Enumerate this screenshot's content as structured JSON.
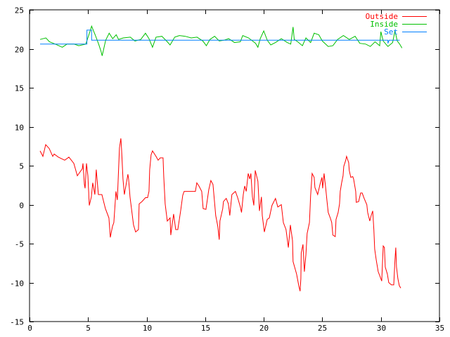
{
  "chart_data": {
    "type": "line",
    "title": "",
    "xlabel": "",
    "ylabel": "",
    "xlim": [
      0,
      35
    ],
    "ylim": [
      -15,
      25
    ],
    "xticks": [
      0,
      5,
      10,
      15,
      20,
      25,
      30,
      35
    ],
    "yticks": [
      -15,
      -10,
      -5,
      0,
      5,
      10,
      15,
      20,
      25
    ],
    "grid": false,
    "legend_position": "top-right",
    "series": [
      {
        "name": "Outside",
        "color": "#ff0000",
        "points": [
          [
            0.9,
            6.9
          ],
          [
            1.14,
            6.2
          ],
          [
            1.38,
            7.7
          ],
          [
            1.68,
            7.2
          ],
          [
            1.98,
            6.2
          ],
          [
            2.1,
            6.5
          ],
          [
            2.46,
            6.1
          ],
          [
            3.0,
            5.7
          ],
          [
            3.36,
            6.1
          ],
          [
            3.78,
            5.3
          ],
          [
            4.08,
            3.7
          ],
          [
            4.5,
            4.6
          ],
          [
            4.56,
            5.3
          ],
          [
            4.68,
            2.6
          ],
          [
            4.74,
            2.1
          ],
          [
            4.86,
            5.3
          ],
          [
            4.98,
            3.7
          ],
          [
            5.1,
            -0.1
          ],
          [
            5.28,
            1.0
          ],
          [
            5.4,
            2.8
          ],
          [
            5.58,
            1.3
          ],
          [
            5.7,
            4.5
          ],
          [
            5.88,
            1.3
          ],
          [
            6.18,
            1.3
          ],
          [
            6.48,
            -0.5
          ],
          [
            6.78,
            -1.7
          ],
          [
            6.9,
            -4.2
          ],
          [
            7.08,
            -2.8
          ],
          [
            7.2,
            -2.3
          ],
          [
            7.38,
            1.7
          ],
          [
            7.5,
            0.6
          ],
          [
            7.68,
            7.3
          ],
          [
            7.8,
            8.5
          ],
          [
            7.86,
            7.1
          ],
          [
            7.98,
            3.3
          ],
          [
            8.1,
            1.3
          ],
          [
            8.4,
            3.9
          ],
          [
            8.46,
            3.3
          ],
          [
            8.58,
            1.0
          ],
          [
            8.88,
            -2.6
          ],
          [
            9.06,
            -3.5
          ],
          [
            9.3,
            -3.2
          ],
          [
            9.36,
            0.1
          ],
          [
            9.6,
            0.4
          ],
          [
            9.9,
            0.9
          ],
          [
            10.08,
            0.9
          ],
          [
            10.2,
            1.7
          ],
          [
            10.26,
            4.5
          ],
          [
            10.38,
            6.4
          ],
          [
            10.5,
            6.9
          ],
          [
            10.8,
            6.2
          ],
          [
            10.98,
            5.7
          ],
          [
            11.16,
            6.0
          ],
          [
            11.4,
            6.0
          ],
          [
            11.46,
            3.6
          ],
          [
            11.58,
            0.1
          ],
          [
            11.76,
            -2.1
          ],
          [
            12.0,
            -1.7
          ],
          [
            12.06,
            -3.9
          ],
          [
            12.3,
            -1.2
          ],
          [
            12.48,
            -3.2
          ],
          [
            12.66,
            -3.2
          ],
          [
            12.9,
            -0.8
          ],
          [
            13.08,
            1.2
          ],
          [
            13.2,
            1.7
          ],
          [
            14.16,
            1.7
          ],
          [
            14.28,
            2.8
          ],
          [
            14.46,
            2.4
          ],
          [
            14.7,
            1.7
          ],
          [
            14.82,
            -0.5
          ],
          [
            15.06,
            -0.6
          ],
          [
            15.3,
            1.9
          ],
          [
            15.48,
            3.1
          ],
          [
            15.66,
            2.6
          ],
          [
            15.9,
            -1.4
          ],
          [
            16.08,
            -2.8
          ],
          [
            16.2,
            -4.5
          ],
          [
            16.26,
            -2.1
          ],
          [
            16.5,
            -0.5
          ],
          [
            16.56,
            0.4
          ],
          [
            16.8,
            0.8
          ],
          [
            16.98,
            0.1
          ],
          [
            17.1,
            -1.4
          ],
          [
            17.28,
            1.3
          ],
          [
            17.58,
            1.7
          ],
          [
            17.77,
            0.9
          ],
          [
            18.0,
            -0.3
          ],
          [
            18.1,
            -1.0
          ],
          [
            18.25,
            1.3
          ],
          [
            18.37,
            2.4
          ],
          [
            18.5,
            1.7
          ],
          [
            18.67,
            4.0
          ],
          [
            18.8,
            3.3
          ],
          [
            18.9,
            4.0
          ],
          [
            19.03,
            1.0
          ],
          [
            19.15,
            -0.1
          ],
          [
            19.27,
            4.4
          ],
          [
            19.5,
            3.0
          ],
          [
            19.63,
            -0.8
          ],
          [
            19.8,
            1.0
          ],
          [
            19.87,
            -1.4
          ],
          [
            20.05,
            -3.5
          ],
          [
            20.29,
            -1.9
          ],
          [
            20.47,
            -1.7
          ],
          [
            20.7,
            -0.1
          ],
          [
            21.0,
            0.8
          ],
          [
            21.2,
            -0.3
          ],
          [
            21.5,
            0.0
          ],
          [
            21.67,
            -2.3
          ],
          [
            21.9,
            -3.2
          ],
          [
            22.1,
            -5.5
          ],
          [
            22.27,
            -2.6
          ],
          [
            22.45,
            -4.6
          ],
          [
            22.5,
            -7.3
          ],
          [
            22.8,
            -8.9
          ],
          [
            22.99,
            -10.4
          ],
          [
            23.1,
            -11.1
          ],
          [
            23.17,
            -9.5
          ],
          [
            23.2,
            -6.2
          ],
          [
            23.35,
            -5.1
          ],
          [
            23.47,
            -8.6
          ],
          [
            23.6,
            -6.4
          ],
          [
            23.7,
            -3.7
          ],
          [
            23.9,
            -2.3
          ],
          [
            24.0,
            1.2
          ],
          [
            24.13,
            4.0
          ],
          [
            24.3,
            3.5
          ],
          [
            24.37,
            2.2
          ],
          [
            24.6,
            1.3
          ],
          [
            24.8,
            2.6
          ],
          [
            24.97,
            3.5
          ],
          [
            25.03,
            2.1
          ],
          [
            25.15,
            4.0
          ],
          [
            25.27,
            2.4
          ],
          [
            25.39,
            0.6
          ],
          [
            25.5,
            -1.0
          ],
          [
            25.7,
            -1.8
          ],
          [
            25.8,
            -2.3
          ],
          [
            25.9,
            -3.9
          ],
          [
            26.1,
            -4.1
          ],
          [
            26.17,
            -1.9
          ],
          [
            26.35,
            -1.0
          ],
          [
            26.47,
            0.1
          ],
          [
            26.53,
            1.7
          ],
          [
            26.65,
            2.8
          ],
          [
            26.77,
            3.7
          ],
          [
            26.83,
            4.9
          ],
          [
            27.0,
            5.7
          ],
          [
            27.07,
            6.2
          ],
          [
            27.25,
            5.4
          ],
          [
            27.3,
            4.4
          ],
          [
            27.43,
            3.5
          ],
          [
            27.6,
            3.6
          ],
          [
            27.67,
            3.3
          ],
          [
            27.85,
            1.7
          ],
          [
            27.9,
            0.3
          ],
          [
            28.1,
            0.4
          ],
          [
            28.27,
            1.5
          ],
          [
            28.4,
            1.5
          ],
          [
            28.57,
            0.8
          ],
          [
            28.8,
            0.0
          ],
          [
            28.87,
            -1.0
          ],
          [
            29.05,
            -2.1
          ],
          [
            29.17,
            -1.4
          ],
          [
            29.3,
            -0.8
          ],
          [
            29.4,
            -3.2
          ],
          [
            29.47,
            -5.7
          ],
          [
            29.6,
            -7.1
          ],
          [
            29.77,
            -8.6
          ],
          [
            29.9,
            -9.1
          ],
          [
            30.07,
            -9.8
          ],
          [
            30.2,
            -5.3
          ],
          [
            30.3,
            -5.5
          ],
          [
            30.37,
            -8.0
          ],
          [
            30.55,
            -8.9
          ],
          [
            30.67,
            -10.0
          ],
          [
            30.9,
            -10.3
          ],
          [
            31.1,
            -10.3
          ],
          [
            31.2,
            -7.1
          ],
          [
            31.27,
            -5.5
          ],
          [
            31.33,
            -8.0
          ],
          [
            31.45,
            -9.5
          ],
          [
            31.57,
            -10.4
          ],
          [
            31.7,
            -10.7
          ]
        ]
      },
      {
        "name": "Inside",
        "color": "#00c000",
        "points": [
          [
            0.9,
            21.2
          ],
          [
            1.4,
            21.4
          ],
          [
            1.7,
            20.9
          ],
          [
            2.2,
            20.6
          ],
          [
            2.8,
            20.2
          ],
          [
            3.2,
            20.6
          ],
          [
            3.8,
            20.6
          ],
          [
            4.2,
            20.4
          ],
          [
            4.8,
            20.6
          ],
          [
            5.0,
            21.5
          ],
          [
            5.2,
            22.4
          ],
          [
            5.3,
            22.9
          ],
          [
            5.6,
            21.8
          ],
          [
            5.9,
            20.6
          ],
          [
            6.1,
            19.7
          ],
          [
            6.2,
            19.1
          ],
          [
            6.5,
            21.1
          ],
          [
            6.8,
            22.0
          ],
          [
            7.1,
            21.3
          ],
          [
            7.4,
            21.8
          ],
          [
            7.6,
            21.2
          ],
          [
            8.0,
            21.4
          ],
          [
            8.6,
            21.5
          ],
          [
            9.0,
            21.0
          ],
          [
            9.5,
            21.2
          ],
          [
            9.9,
            22.0
          ],
          [
            10.2,
            21.3
          ],
          [
            10.5,
            20.2
          ],
          [
            10.8,
            21.5
          ],
          [
            11.3,
            21.6
          ],
          [
            11.7,
            21.0
          ],
          [
            12.0,
            20.5
          ],
          [
            12.4,
            21.5
          ],
          [
            12.8,
            21.7
          ],
          [
            13.3,
            21.6
          ],
          [
            13.8,
            21.4
          ],
          [
            14.3,
            21.5
          ],
          [
            14.8,
            21.0
          ],
          [
            15.1,
            20.4
          ],
          [
            15.4,
            21.2
          ],
          [
            15.8,
            21.6
          ],
          [
            16.2,
            21.0
          ],
          [
            16.6,
            21.1
          ],
          [
            17.0,
            21.3
          ],
          [
            17.5,
            20.8
          ],
          [
            18.0,
            20.9
          ],
          [
            18.2,
            21.7
          ],
          [
            18.7,
            21.4
          ],
          [
            19.3,
            20.7
          ],
          [
            19.5,
            20.2
          ],
          [
            19.7,
            21.3
          ],
          [
            20.0,
            22.3
          ],
          [
            20.3,
            21.1
          ],
          [
            20.6,
            20.5
          ],
          [
            21.0,
            20.8
          ],
          [
            21.5,
            21.3
          ],
          [
            22.0,
            20.8
          ],
          [
            22.3,
            20.6
          ],
          [
            22.5,
            22.8
          ],
          [
            22.6,
            21.2
          ],
          [
            22.9,
            20.9
          ],
          [
            23.3,
            20.4
          ],
          [
            23.6,
            21.4
          ],
          [
            24.0,
            20.8
          ],
          [
            24.3,
            22.0
          ],
          [
            24.7,
            21.8
          ],
          [
            25.0,
            21.0
          ],
          [
            25.5,
            20.3
          ],
          [
            25.9,
            20.4
          ],
          [
            26.3,
            21.2
          ],
          [
            26.8,
            21.7
          ],
          [
            27.3,
            21.2
          ],
          [
            27.8,
            21.6
          ],
          [
            28.2,
            20.7
          ],
          [
            28.7,
            20.6
          ],
          [
            29.1,
            20.3
          ],
          [
            29.5,
            20.9
          ],
          [
            29.9,
            20.4
          ],
          [
            30.0,
            22.2
          ],
          [
            30.2,
            21.0
          ],
          [
            30.6,
            20.3
          ],
          [
            31.0,
            20.8
          ],
          [
            31.2,
            22.3
          ],
          [
            31.4,
            21.0
          ],
          [
            31.6,
            20.6
          ],
          [
            31.8,
            20.1
          ]
        ]
      },
      {
        "name": "Set",
        "color": "#0080ff",
        "points": [
          [
            0.9,
            20.6
          ],
          [
            4.9,
            20.6
          ],
          [
            4.9,
            22.4
          ],
          [
            5.3,
            22.4
          ],
          [
            5.3,
            21.1
          ],
          [
            30.6,
            21.1
          ],
          [
            30.6,
            20.7
          ],
          [
            30.7,
            21.1
          ],
          [
            31.6,
            21.1
          ]
        ]
      }
    ]
  }
}
